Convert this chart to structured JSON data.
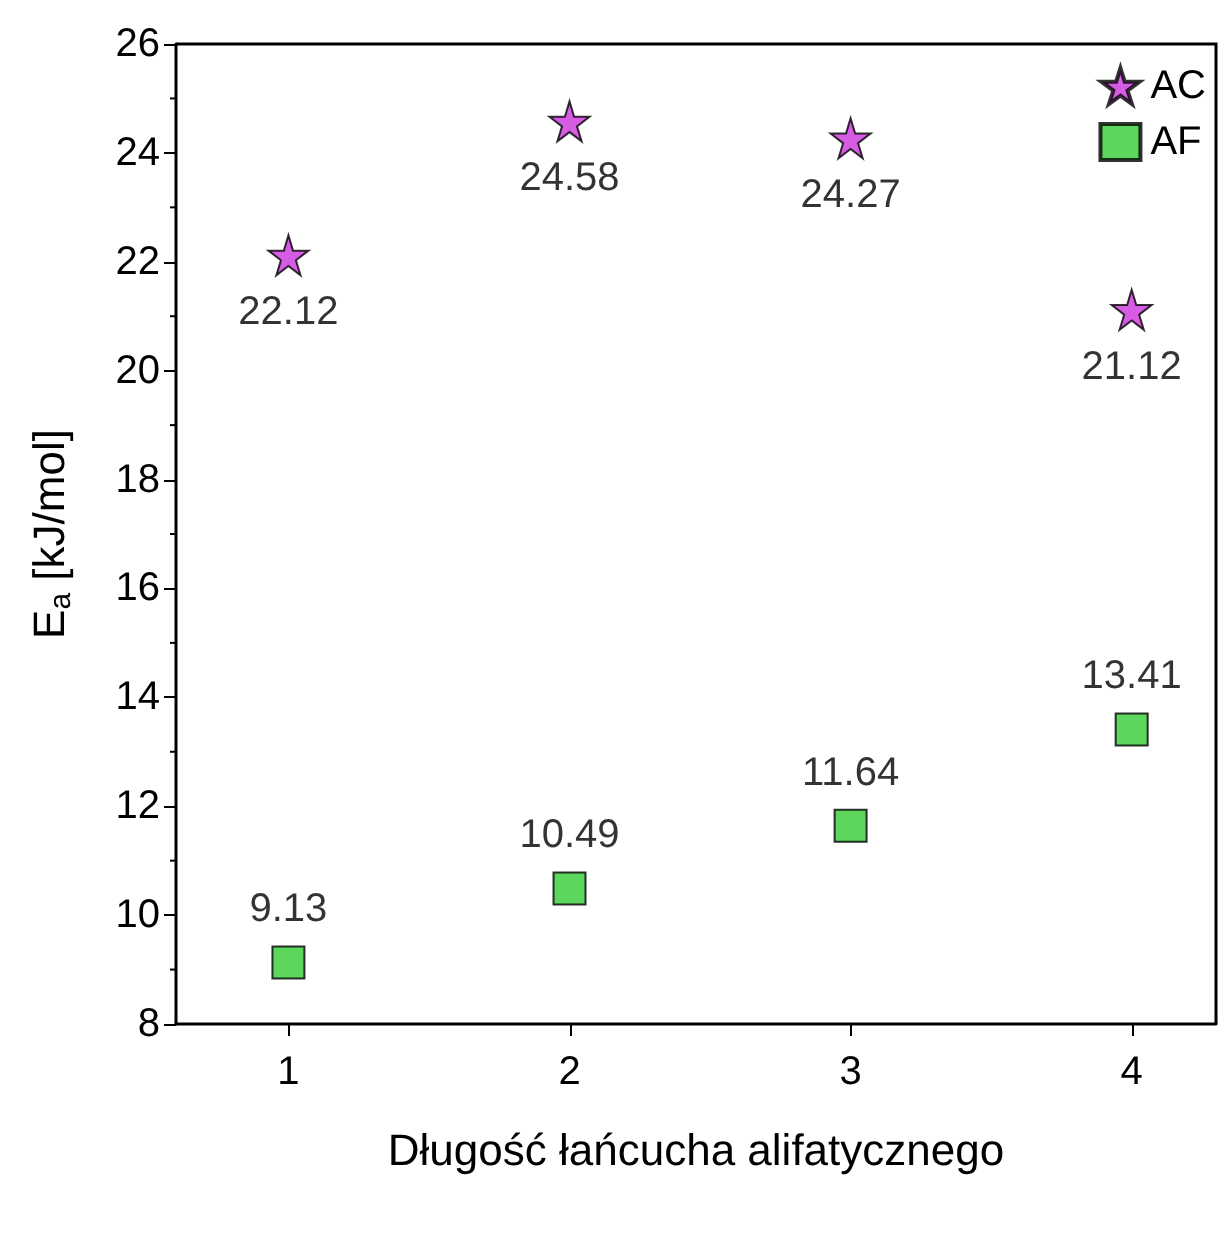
{
  "chart_data": {
    "type": "scatter",
    "xlabel": "Długość łańcucha alifatycznego",
    "ylabel": "E$_{a}$ [kJ/mol]",
    "x": [
      1,
      2,
      3,
      4
    ],
    "series": [
      {
        "name": "AC",
        "color": "#cc33dd",
        "marker": "star",
        "values": [
          22.12,
          24.58,
          24.27,
          21.12
        ]
      },
      {
        "name": "AF",
        "color": "#33cc33",
        "marker": "square",
        "values": [
          9.13,
          10.49,
          11.64,
          13.41
        ]
      }
    ],
    "xlim": [
      0.6,
      4.3
    ],
    "xticks": [
      1,
      2,
      3,
      4
    ],
    "ylim": [
      8,
      26
    ],
    "yticks": [
      8,
      10,
      12,
      14,
      16,
      18,
      20,
      22,
      24,
      26
    ],
    "data_labels": true,
    "legend": "top right",
    "grid": false
  }
}
